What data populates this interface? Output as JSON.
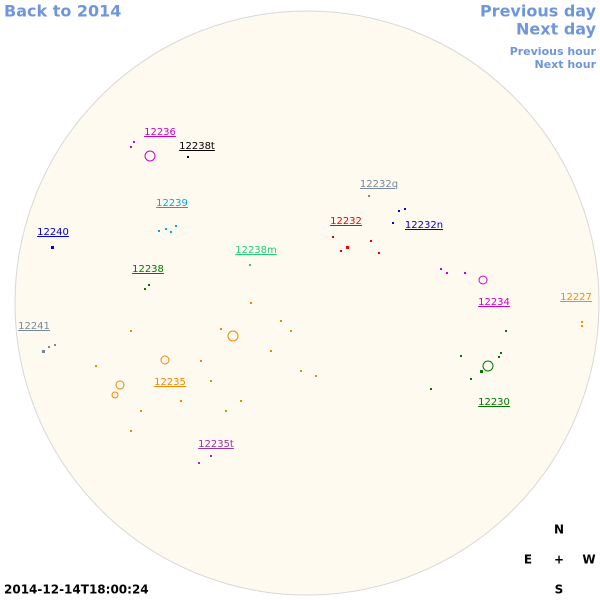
{
  "nav": {
    "back": "Back to 2014",
    "previous_day": "Previous day",
    "next_day": "Next day",
    "previous_hour": "Previous hour",
    "next_hour": "Next hour"
  },
  "timestamp": "2014-12-14T18:00:24",
  "compass": {
    "north": "N",
    "east": "E",
    "center": "+",
    "west": "W",
    "south": "S"
  },
  "regions": [
    {
      "label": "12236",
      "color": "#cc00cc"
    },
    {
      "label": "12238t",
      "color": "#000000"
    },
    {
      "label": "12239",
      "color": "#00aadd"
    },
    {
      "label": "12240",
      "color": "#0000cc"
    },
    {
      "label": "12238",
      "color": "#007700"
    },
    {
      "label": "12238m",
      "color": "#22cc77"
    },
    {
      "label": "12232q",
      "color": "#778899"
    },
    {
      "label": "12232",
      "color": "#ee0000"
    },
    {
      "label": "12232n",
      "color": "#0000cc"
    },
    {
      "label": "12234",
      "color": "#cc00cc"
    },
    {
      "label": "12227",
      "color": "#ff8800"
    },
    {
      "label": "12241",
      "color": "#778899"
    },
    {
      "label": "12235",
      "color": "#ee8800"
    },
    {
      "label": "12230",
      "color": "#007700"
    },
    {
      "label": "12235t",
      "color": "#9933aa"
    }
  ]
}
